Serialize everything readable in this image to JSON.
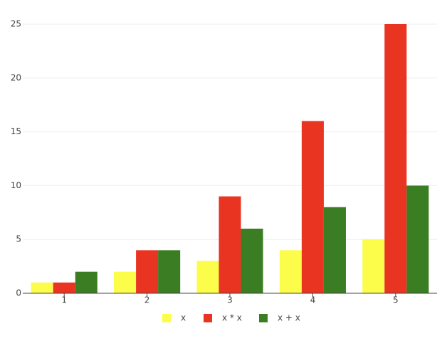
{
  "chart_data": {
    "type": "bar",
    "categories": [
      "1",
      "2",
      "3",
      "4",
      "5"
    ],
    "series": [
      {
        "name": "x",
        "color": "#fcfc4a",
        "values": [
          1,
          2,
          3,
          4,
          5
        ]
      },
      {
        "name": "x * x",
        "color": "#e93422",
        "values": [
          1,
          4,
          9,
          16,
          25
        ]
      },
      {
        "name": "x + x",
        "color": "#3a7d22",
        "values": [
          2,
          4,
          6,
          8,
          10
        ]
      }
    ],
    "ylim": [
      0,
      25
    ],
    "yticks": [
      0,
      5,
      10,
      15,
      20,
      25
    ],
    "grid": true,
    "legend": "bottom"
  }
}
